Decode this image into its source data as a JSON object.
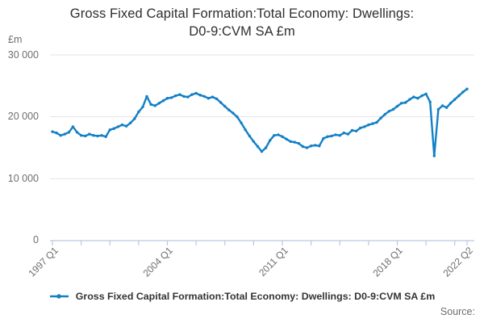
{
  "title": {
    "line1": "Gross Fixed Capital Formation:Total Economy: Dwellings:",
    "line2": "D0-9:CVM SA £m"
  },
  "y_axis": {
    "unit": "£m",
    "tick_labels": [
      "30 000",
      "20 000",
      "10 000",
      "0"
    ],
    "tick_values": [
      30000,
      20000,
      10000,
      0
    ]
  },
  "x_axis": {
    "labels": [
      {
        "text": "1997 Q1",
        "quarter_index": 0
      },
      {
        "text": "2004 Q1",
        "quarter_index": 28
      },
      {
        "text": "2011 Q1",
        "quarter_index": 56
      },
      {
        "text": "2018 Q1",
        "quarter_index": 84
      },
      {
        "text": "2022 Q2",
        "quarter_index": 101
      }
    ],
    "minor_tick_quarter_indices": [
      0,
      7,
      14,
      21,
      28,
      35,
      42,
      49,
      56,
      63,
      70,
      77,
      84,
      91,
      98,
      101
    ]
  },
  "legend": {
    "label": "Gross Fixed Capital Formation:Total Economy: Dwellings: D0-9:CVM SA £m"
  },
  "source": {
    "label": "Source:"
  },
  "colors": {
    "line": "#1380c6",
    "grid": "#e3e3e3",
    "axis": "#bac8e2",
    "title_text": "#2e2e2e",
    "muted_text": "#6e6e6e"
  },
  "chart_data": {
    "type": "line",
    "title": "Gross Fixed Capital Formation:Total Economy: Dwellings: D0-9:CVM SA £m",
    "ylabel": "£m",
    "ylim": [
      0,
      30000
    ],
    "grid": "horizontal",
    "legend_position": "bottom",
    "frequency": "quarterly",
    "x_start": "1997 Q1",
    "x_end": "2022 Q2",
    "x_tick_labels": [
      "1997 Q1",
      "2004 Q1",
      "2011 Q1",
      "2018 Q1",
      "2022 Q2"
    ],
    "series": [
      {
        "name": "Gross Fixed Capital Formation:Total Economy: Dwellings: D0-9:CVM SA £m",
        "values": [
          17600,
          17400,
          17000,
          17200,
          17500,
          18400,
          17500,
          17000,
          16900,
          17200,
          17000,
          16900,
          17000,
          16800,
          17900,
          18100,
          18400,
          18700,
          18500,
          19000,
          19700,
          20800,
          21600,
          23300,
          22000,
          21800,
          22200,
          22600,
          23000,
          23100,
          23400,
          23600,
          23300,
          23200,
          23600,
          23800,
          23500,
          23300,
          23000,
          23200,
          22900,
          22300,
          21700,
          21100,
          20600,
          20000,
          19000,
          17900,
          16900,
          16000,
          15200,
          14400,
          15000,
          16200,
          17000,
          17100,
          16800,
          16400,
          16000,
          15900,
          15700,
          15200,
          15000,
          15300,
          15400,
          15300,
          16500,
          16800,
          16900,
          17100,
          17000,
          17400,
          17200,
          17800,
          17700,
          18200,
          18400,
          18700,
          18900,
          19100,
          19800,
          20400,
          20900,
          21200,
          21700,
          22200,
          22300,
          22800,
          23200,
          23000,
          23400,
          23700,
          22400,
          13700,
          21200,
          21800,
          21500,
          22200,
          22800,
          23400,
          24000,
          24500
        ]
      }
    ]
  }
}
